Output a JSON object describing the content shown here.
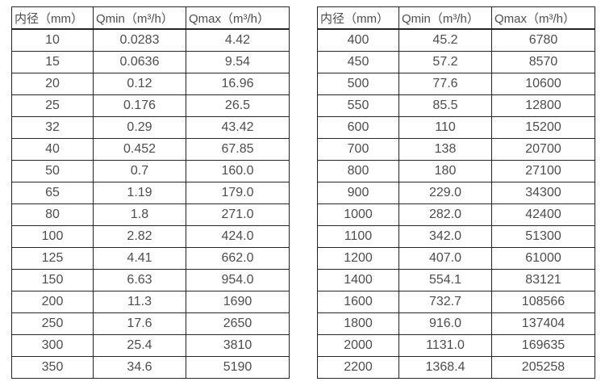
{
  "page": {
    "background": "#ffffff",
    "text_color": "#4d4d4d",
    "border_color": "#262626"
  },
  "tables": [
    {
      "name": "small-diameter-flow-table",
      "headers": [
        "内径（mm）",
        "Qmin（m³/h）",
        "Qmax（m³/h）"
      ],
      "rows": [
        [
          "10",
          "0.0283",
          "4.42"
        ],
        [
          "15",
          "0.0636",
          "9.54"
        ],
        [
          "20",
          "0.12",
          "16.96"
        ],
        [
          "25",
          "0.176",
          "26.5"
        ],
        [
          "32",
          "0.29",
          "43.42"
        ],
        [
          "40",
          "0.452",
          "67.85"
        ],
        [
          "50",
          "0.7",
          "160.0"
        ],
        [
          "65",
          "1.19",
          "179.0"
        ],
        [
          "80",
          "1.8",
          "271.0"
        ],
        [
          "100",
          "2.82",
          "424.0"
        ],
        [
          "125",
          "4.41",
          "662.0"
        ],
        [
          "150",
          "6.63",
          "954.0"
        ],
        [
          "200",
          "11.3",
          "1690"
        ],
        [
          "250",
          "17.6",
          "2650"
        ],
        [
          "300",
          "25.4",
          "3810"
        ],
        [
          "350",
          "34.6",
          "5190"
        ]
      ]
    },
    {
      "name": "large-diameter-flow-table",
      "headers": [
        "内径（mm）",
        "Qmin（m³/h）",
        "Qmax（m³/h）"
      ],
      "rows": [
        [
          "400",
          "45.2",
          "6780"
        ],
        [
          "450",
          "57.2",
          "8570"
        ],
        [
          "500",
          "77.6",
          "10600"
        ],
        [
          "550",
          "85.5",
          "12800"
        ],
        [
          "600",
          "110",
          "15200"
        ],
        [
          "700",
          "138",
          "20700"
        ],
        [
          "800",
          "180",
          "27100"
        ],
        [
          "900",
          "229.0",
          "34300"
        ],
        [
          "1000",
          "282.0",
          "42400"
        ],
        [
          "1100",
          "342.0",
          "51300"
        ],
        [
          "1200",
          "407.0",
          "61000"
        ],
        [
          "1400",
          "554.1",
          "83121"
        ],
        [
          "1600",
          "732.7",
          "108566"
        ],
        [
          "1800",
          "916.0",
          "137404"
        ],
        [
          "2000",
          "1131.0",
          "169635"
        ],
        [
          "2200",
          "1368.4",
          "205258"
        ]
      ]
    }
  ]
}
